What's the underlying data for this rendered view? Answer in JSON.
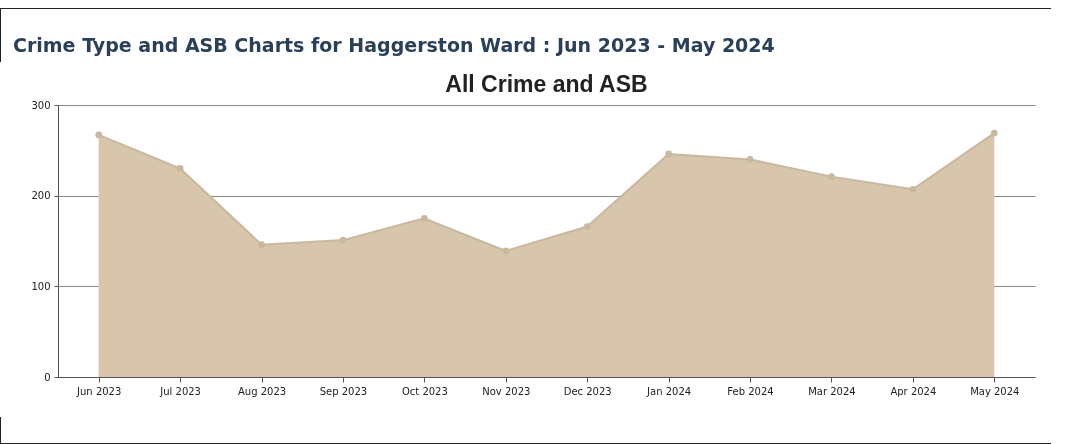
{
  "chart_data": {
    "type": "area",
    "title": "Crime Type and ASB Charts for Haggerston Ward : Jun 2023 - May 2024",
    "subtitle": "All Crime and ASB",
    "categories": [
      "Jun 2023",
      "Jul 2023",
      "Aug 2023",
      "Sep 2023",
      "Oct 2023",
      "Nov 2023",
      "Dec 2023",
      "Jan 2024",
      "Feb 2024",
      "Mar 2024",
      "Apr 2024",
      "May 2024"
    ],
    "series": [
      {
        "color": "#d7c6ab",
        "values": [
          267,
          230,
          146,
          151,
          175,
          139,
          166,
          246,
          240,
          221,
          207,
          269
        ]
      }
    ],
    "ylim": [
      0,
      300
    ],
    "yticks": [
      0,
      100,
      200,
      300
    ],
    "grid": "y",
    "marker": "circle",
    "line_style": "solid"
  }
}
